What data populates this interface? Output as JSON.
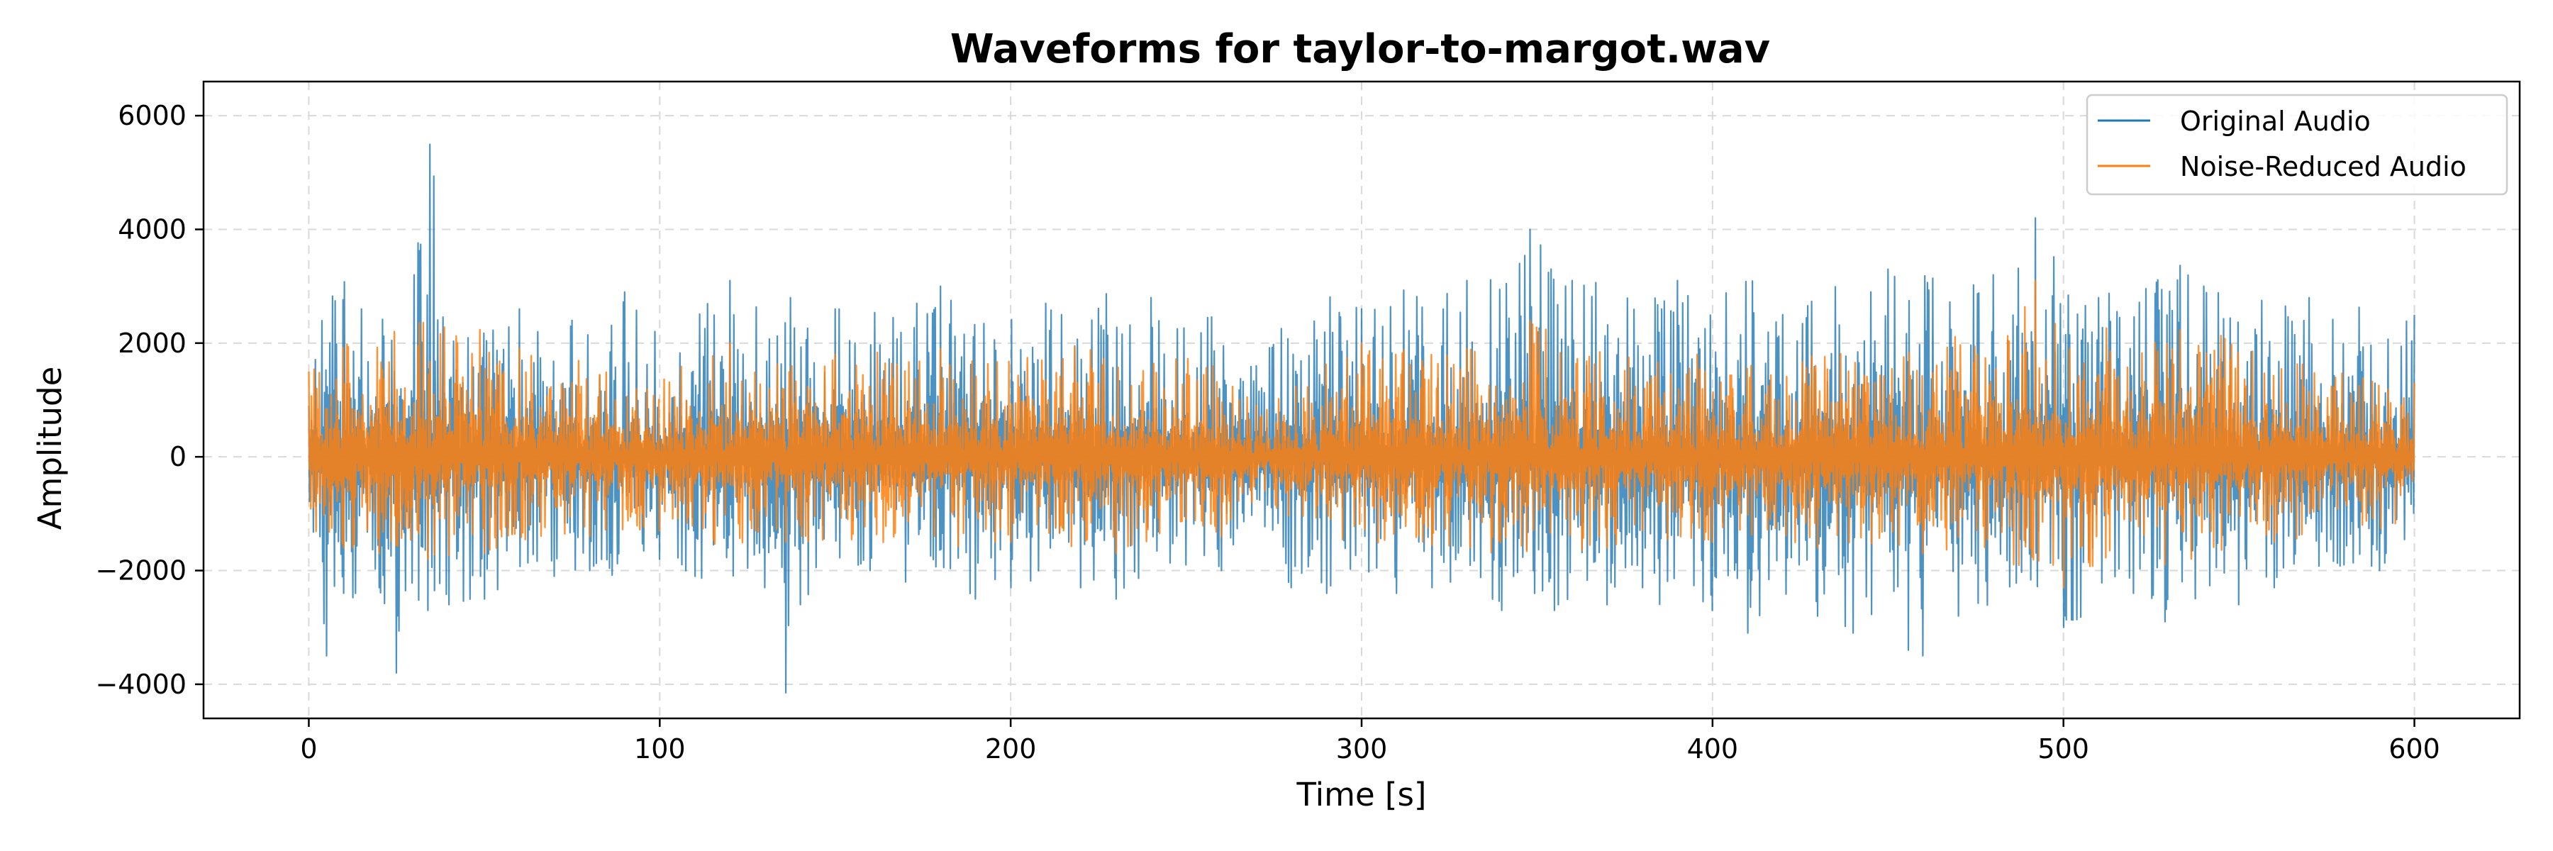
{
  "chart_data": {
    "type": "line",
    "title": "Waveforms for taylor-to-margot.wav",
    "xlabel": "Time [s]",
    "ylabel": "Amplitude",
    "xlim": [
      -30,
      630
    ],
    "ylim": [
      -4600,
      6600
    ],
    "xticks": [
      0,
      100,
      200,
      300,
      400,
      500,
      600
    ],
    "yticks": [
      -4000,
      -2000,
      0,
      2000,
      4000,
      6000
    ],
    "xtick_labels": [
      "0",
      "100",
      "200",
      "300",
      "400",
      "500",
      "600"
    ],
    "ytick_labels": [
      "−4000",
      "−2000",
      "0",
      "2000",
      "4000",
      "6000"
    ],
    "grid": true,
    "legend": "top-right",
    "duration_s": 600,
    "series": [
      {
        "name": "Original Audio",
        "color": "#1f77b4",
        "envelope": {
          "x": [
            0,
            5,
            10,
            15,
            20,
            25,
            30,
            34,
            40,
            50,
            60,
            70,
            80,
            90,
            100,
            110,
            120,
            130,
            136,
            140,
            150,
            160,
            170,
            180,
            190,
            200,
            210,
            220,
            230,
            240,
            250,
            260,
            270,
            280,
            290,
            300,
            310,
            320,
            330,
            340,
            348,
            355,
            360,
            370,
            380,
            390,
            400,
            410,
            420,
            430,
            440,
            450,
            460,
            470,
            480,
            492,
            500,
            510,
            520,
            529,
            540,
            550,
            560,
            570,
            580,
            590,
            600
          ],
          "max": [
            900,
            3100,
            3900,
            2600,
            3000,
            3400,
            3200,
            6150,
            2800,
            2500,
            2600,
            2400,
            2500,
            2900,
            2300,
            2800,
            3100,
            3100,
            2700,
            3100,
            2600,
            2600,
            2900,
            3000,
            3200,
            2600,
            2700,
            2800,
            2900,
            2800,
            2400,
            2600,
            1600,
            3100,
            3000,
            2600,
            3000,
            2700,
            3100,
            3400,
            4000,
            3500,
            3100,
            3100,
            2800,
            3100,
            2800,
            3200,
            2500,
            2900,
            3100,
            3300,
            3200,
            3000,
            3200,
            4200,
            3300,
            2800,
            3100,
            4000,
            3000,
            2900,
            2900,
            2800,
            2600,
            2700,
            2500
          ],
          "min": [
            -1600,
            -3500,
            -2400,
            -2700,
            -2300,
            -3800,
            -2800,
            -2700,
            -2600,
            -2500,
            -2200,
            -2100,
            -2000,
            -2200,
            -1800,
            -2100,
            -2400,
            -2300,
            -4150,
            -2600,
            -2200,
            -2000,
            -2200,
            -2000,
            -2500,
            -2300,
            -2400,
            -2300,
            -2500,
            -2400,
            -1900,
            -2000,
            -1300,
            -2300,
            -2400,
            -2300,
            -2400,
            -2300,
            -2400,
            -2700,
            -3100,
            -2700,
            -2600,
            -2600,
            -2300,
            -2900,
            -2700,
            -3100,
            -2400,
            -2800,
            -3100,
            -3300,
            -3500,
            -2800,
            -2900,
            -2400,
            -3000,
            -2700,
            -2400,
            -2900,
            -2600,
            -2600,
            -2300,
            -2300,
            -1900,
            -2000,
            -1300
          ]
        }
      },
      {
        "name": "Noise-Reduced Audio",
        "color": "#ff7f0e",
        "envelope": {
          "x": [
            0,
            10,
            20,
            34,
            50,
            60,
            80,
            100,
            120,
            136,
            150,
            180,
            200,
            230,
            260,
            270,
            300,
            330,
            348,
            370,
            400,
            430,
            460,
            492,
            500,
            529,
            560,
            600
          ],
          "max": [
            1500,
            2000,
            2200,
            2500,
            2300,
            1900,
            1700,
            1500,
            2000,
            1700,
            1800,
            1900,
            1800,
            2100,
            1600,
            900,
            2000,
            1900,
            2400,
            1900,
            1800,
            1800,
            1900,
            3100,
            2100,
            2600,
            1800,
            1300
          ],
          "min": [
            -1400,
            -1600,
            -1700,
            -1800,
            -1700,
            -1500,
            -1400,
            -1300,
            -1600,
            -1500,
            -1500,
            -1600,
            -1500,
            -1700,
            -1400,
            -800,
            -1600,
            -1600,
            -1900,
            -1600,
            -1500,
            -1600,
            -1700,
            -2000,
            -2300,
            -1900,
            -1500,
            -1200
          ]
        }
      }
    ]
  }
}
